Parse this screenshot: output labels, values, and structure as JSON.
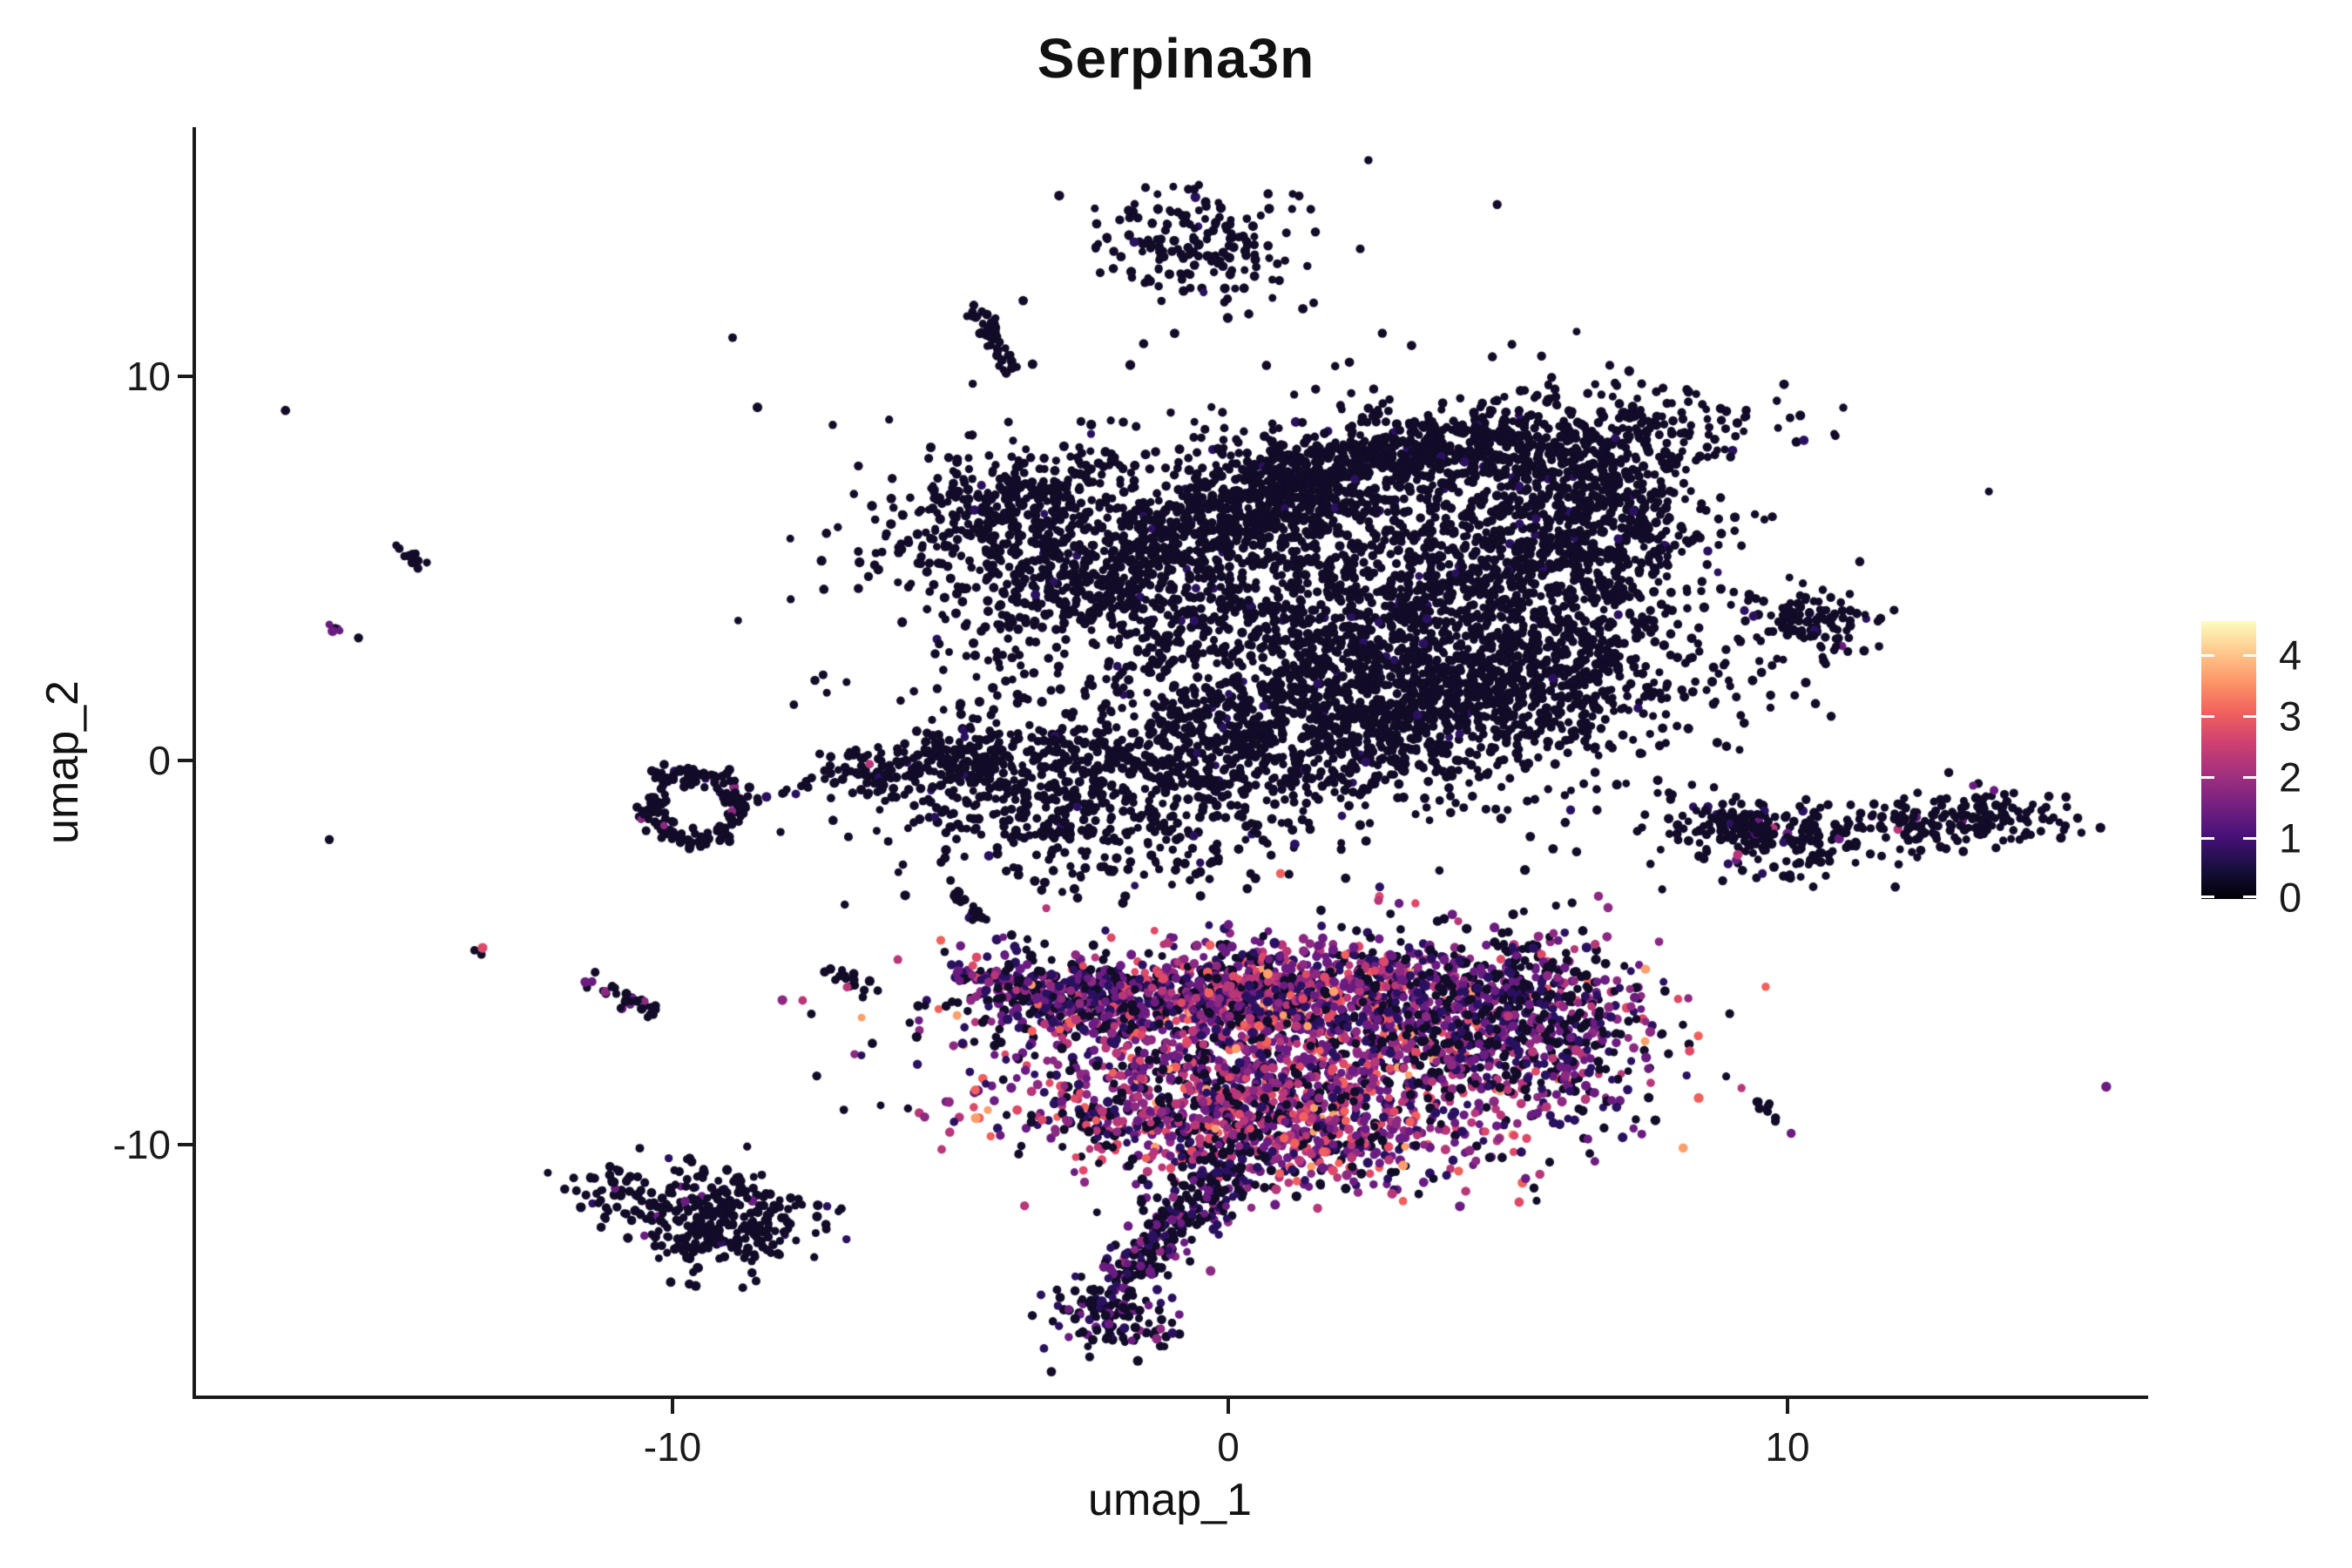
{
  "title": "Serpina3n",
  "axes": {
    "x": {
      "label": "umap_1",
      "range": [
        -18.6,
        16.5
      ],
      "ticks": [
        {
          "value": -10,
          "label": "-10"
        },
        {
          "value": 0,
          "label": "0"
        },
        {
          "value": 10,
          "label": "10"
        }
      ]
    },
    "y": {
      "label": "umap_2",
      "range": [
        -16.5,
        16.4
      ],
      "ticks": [
        {
          "value": 10,
          "label": "10"
        },
        {
          "value": 0,
          "label": "0"
        },
        {
          "value": -10,
          "label": "-10"
        }
      ]
    }
  },
  "colorbar": {
    "max_value": 4.55,
    "min_value": 0,
    "gradient": [
      "#000004",
      "#180f3e",
      "#451077",
      "#721f81",
      "#9f2f7f",
      "#cd4071",
      "#f1605d",
      "#fd9567",
      "#fec98d",
      "#fcfdbf"
    ],
    "ticks": [
      {
        "value": 4,
        "label": "4"
      },
      {
        "value": 3,
        "label": "3"
      },
      {
        "value": 2,
        "label": "2"
      },
      {
        "value": 1,
        "label": "1"
      },
      {
        "value": 0,
        "label": "0"
      }
    ]
  },
  "palette": {
    "black": "#120c28",
    "darkpurple": "#2a1160",
    "purple": "#6a1c81",
    "violet": "#8c2981",
    "magenta": "#b73779",
    "pink": "#de4968",
    "salmon": "#f1605d",
    "orange": "#fc9f6b"
  },
  "chart_data": {
    "type": "scatter",
    "title": "Serpina3n",
    "xlabel": "umap_1",
    "ylabel": "umap_2",
    "xlim": [
      -18.6,
      16.5
    ],
    "ylim": [
      -16.5,
      16.4
    ],
    "legend": "expression level 0 to 4+ on magma color scale, legend at right",
    "point_radius_px": 5,
    "mixes": {
      "BLACK": [
        [
          "black",
          0.975
        ],
        [
          "darkpurple",
          0.025
        ]
      ],
      "colorful": [
        [
          "black",
          0.25
        ],
        [
          "darkpurple",
          0.16
        ],
        [
          "purple",
          0.2
        ],
        [
          "violet",
          0.13
        ],
        [
          "magenta",
          0.13
        ],
        [
          "pink",
          0.07
        ],
        [
          "salmon",
          0.04
        ],
        [
          "orange",
          0.02
        ]
      ],
      "warm": [
        [
          "black",
          0.18
        ],
        [
          "darkpurple",
          0.13
        ],
        [
          "purple",
          0.19
        ],
        [
          "violet",
          0.14
        ],
        [
          "magenta",
          0.18
        ],
        [
          "pink",
          0.11
        ],
        [
          "salmon",
          0.05
        ],
        [
          "orange",
          0.02
        ]
      ],
      "pbm": [
        [
          "black",
          0.44
        ],
        [
          "darkpurple",
          0.22
        ],
        [
          "purple",
          0.19
        ],
        [
          "violet",
          0.09
        ],
        [
          "magenta",
          0.05
        ],
        [
          "pink",
          0.01
        ]
      ],
      "tailmix": [
        [
          "black",
          0.56
        ],
        [
          "darkpurple",
          0.2
        ],
        [
          "purple",
          0.16
        ],
        [
          "violet",
          0.06
        ],
        [
          "magenta",
          0.02
        ]
      ]
    },
    "clusters": [
      {
        "name": "main-band-right",
        "shape": "blob",
        "cx": 4.5,
        "cy": 8.1,
        "sx": 2.6,
        "sy": 0.55,
        "angle": 8,
        "n": 700,
        "mix": "BLACK"
      },
      {
        "name": "main-band-mid",
        "shape": "blob",
        "cx": 0.8,
        "cy": 6.9,
        "sx": 1.6,
        "sy": 0.55,
        "angle": 30,
        "n": 450,
        "mix": "BLACK"
      },
      {
        "name": "main-left-blob",
        "shape": "blob",
        "cx": -2.3,
        "cy": 5.2,
        "sx": 1.9,
        "sy": 1.4,
        "angle": -10,
        "n": 900,
        "mix": "BLACK"
      },
      {
        "name": "main-left-tail-up",
        "shape": "blob",
        "cx": -4.0,
        "cy": 6.7,
        "sx": 1.0,
        "sy": 0.45,
        "angle": 35,
        "n": 150,
        "mix": "BLACK"
      },
      {
        "name": "main-right-fill",
        "shape": "blob",
        "cx": 3.7,
        "cy": 4.0,
        "sx": 2.4,
        "sy": 2.5,
        "angle": 0,
        "n": 1300,
        "mix": "BLACK"
      },
      {
        "name": "main-right-low",
        "shape": "blob",
        "cx": 4.3,
        "cy": 1.8,
        "sx": 2.2,
        "sy": 1.0,
        "angle": 8,
        "n": 700,
        "mix": "BLACK"
      },
      {
        "name": "main-right-dense",
        "shape": "blob",
        "cx": 5.6,
        "cy": 5.4,
        "sx": 1.2,
        "sy": 1.2,
        "angle": 0,
        "n": 420,
        "mix": "BLACK"
      },
      {
        "name": "main-right-tip",
        "shape": "blob",
        "cx": 6.9,
        "cy": 6.7,
        "sx": 0.75,
        "sy": 0.95,
        "angle": 0,
        "n": 200,
        "mix": "BLACK"
      },
      {
        "name": "main-mid-fill",
        "shape": "blob",
        "cx": 0.9,
        "cy": 3.5,
        "sx": 1.9,
        "sy": 1.6,
        "angle": 0,
        "n": 360,
        "mix": "BLACK"
      },
      {
        "name": "main-low-band",
        "shape": "blob",
        "cx": 1.0,
        "cy": 0.5,
        "sx": 2.2,
        "sy": 0.9,
        "angle": 8,
        "n": 550,
        "mix": "BLACK"
      },
      {
        "name": "main-lowleft-blob",
        "shape": "blob",
        "cx": -2.9,
        "cy": -0.9,
        "sx": 1.9,
        "sy": 1.2,
        "angle": -15,
        "n": 650,
        "mix": "BLACK"
      },
      {
        "name": "main-left-arm",
        "shape": "blob",
        "cx": -5.5,
        "cy": -0.1,
        "sx": 0.9,
        "sy": 0.3,
        "angle": 12,
        "n": 120,
        "mix": "BLACK"
      },
      {
        "name": "main-halo",
        "shape": "blob",
        "cx": 1.0,
        "cy": 4.5,
        "sx": 5.5,
        "sy": 5.0,
        "angle": 0,
        "n": 90,
        "mix": "BLACK"
      },
      {
        "name": "top-island",
        "shape": "blob",
        "cx": -0.55,
        "cy": 13.4,
        "sx": 0.95,
        "sy": 0.8,
        "angle": 0,
        "n": 170,
        "mix": "BLACK"
      },
      {
        "name": "top-streak",
        "shape": "streak",
        "x1": -4.55,
        "y1": 11.8,
        "x2": -3.85,
        "y2": 10.1,
        "w": 0.12,
        "n": 40,
        "mix": "BLACK"
      },
      {
        "name": "far-left-streak",
        "shape": "streak",
        "x1": -14.95,
        "y1": 5.6,
        "x2": -14.5,
        "y2": 5.1,
        "w": 0.07,
        "n": 13,
        "mix": "BLACK"
      },
      {
        "name": "far-left-purple-dot",
        "shape": "blob",
        "cx": -16.05,
        "cy": 3.35,
        "sx": 0.16,
        "sy": 0.16,
        "angle": 0,
        "n": 7,
        "mix": [
          [
            "black",
            0.5
          ],
          [
            "purple",
            0.3
          ],
          [
            "darkpurple",
            0.2
          ]
        ]
      },
      {
        "name": "hook-cluster",
        "shape": "ring",
        "cx": -9.6,
        "cy": -1.2,
        "rx": 0.85,
        "ry": 1.0,
        "n": 170,
        "mix": [
          [
            "black",
            0.94
          ],
          [
            "darkpurple",
            0.04
          ],
          [
            "violet",
            0.02
          ]
        ]
      },
      {
        "name": "hook-chain",
        "shape": "streak",
        "x1": -8.6,
        "y1": -1.15,
        "x2": -6.3,
        "y2": 0.05,
        "w": 0.1,
        "n": 24,
        "mix": [
          [
            "black",
            0.92
          ],
          [
            "darkpurple",
            0.05
          ],
          [
            "magenta",
            0.03
          ]
        ]
      },
      {
        "name": "pink-pair",
        "shape": "blob",
        "cx": -13.45,
        "cy": -4.95,
        "sx": 0.1,
        "sy": 0.1,
        "angle": 0,
        "n": 3,
        "mix": [
          [
            "black",
            0.55
          ],
          [
            "pink",
            0.45
          ]
        ]
      },
      {
        "name": "purple-streak",
        "shape": "streak",
        "x1": -11.45,
        "y1": -5.75,
        "x2": -10.2,
        "y2": -6.6,
        "w": 0.11,
        "n": 30,
        "mix": [
          [
            "black",
            0.8
          ],
          [
            "purple",
            0.13
          ],
          [
            "violet",
            0.07
          ]
        ]
      },
      {
        "name": "small-streak",
        "shape": "streak",
        "x1": -7.1,
        "y1": -5.4,
        "x2": -6.3,
        "y2": -6.1,
        "w": 0.1,
        "n": 16,
        "mix": "BLACK"
      },
      {
        "name": "diag-streak",
        "shape": "streak",
        "x1": -5.05,
        "y1": -3.3,
        "x2": -4.3,
        "y2": -4.3,
        "w": 0.08,
        "n": 20,
        "mix": [
          [
            "black",
            0.93
          ],
          [
            "darkpurple",
            0.07
          ]
        ]
      },
      {
        "name": "pos-left-wedge",
        "shape": "blob",
        "cx": -2.9,
        "cy": -6.1,
        "sx": 0.95,
        "sy": 0.55,
        "angle": -15,
        "n": 260,
        "mix": "pbm"
      },
      {
        "name": "pos-left-tip",
        "shape": "blob",
        "cx": -4.1,
        "cy": -5.7,
        "sx": 0.45,
        "sy": 0.22,
        "angle": -10,
        "n": 40,
        "mix": "pbm"
      },
      {
        "name": "pos-upper-band",
        "shape": "blob",
        "cx": 0.7,
        "cy": -6.0,
        "sx": 2.4,
        "sy": 0.6,
        "angle": 3,
        "n": 900,
        "mix": "colorful"
      },
      {
        "name": "pos-main-body",
        "shape": "blob",
        "cx": 1.5,
        "cy": -7.7,
        "sx": 2.8,
        "sy": 1.3,
        "angle": 0,
        "n": 1500,
        "mix": "colorful"
      },
      {
        "name": "pos-right-lobe",
        "shape": "blob",
        "cx": 5.1,
        "cy": -6.7,
        "sx": 1.3,
        "sy": 1.1,
        "angle": -20,
        "n": 550,
        "mix": "pbm"
      },
      {
        "name": "pos-bottom-band",
        "shape": "blob",
        "cx": 0.4,
        "cy": -9.5,
        "sx": 2.1,
        "sy": 0.75,
        "angle": -8,
        "n": 650,
        "mix": "warm"
      },
      {
        "name": "pos-tail",
        "shape": "streak",
        "x1": 0.2,
        "y1": -10.2,
        "x2": -1.9,
        "y2": -13.6,
        "w": 0.33,
        "n": 300,
        "mix": "tailmix"
      },
      {
        "name": "pos-tail-tip",
        "shape": "blob",
        "cx": -2.1,
        "cy": -14.4,
        "sx": 0.55,
        "sy": 0.5,
        "angle": -30,
        "n": 120,
        "mix": [
          [
            "black",
            0.66
          ],
          [
            "darkpurple",
            0.2
          ],
          [
            "purple",
            0.12
          ],
          [
            "violet",
            0.02
          ]
        ]
      },
      {
        "name": "pos-strays",
        "shape": "blob",
        "cx": 1.2,
        "cy": -9.0,
        "sx": 3.2,
        "sy": 1.7,
        "angle": 0,
        "n": 50,
        "mix": "pbm"
      },
      {
        "name": "right-top-blob",
        "shape": "blob",
        "cx": 10.55,
        "cy": 3.6,
        "sx": 0.62,
        "sy": 0.45,
        "angle": -15,
        "n": 110,
        "mix": [
          [
            "black",
            0.95
          ],
          [
            "darkpurple",
            0.03
          ],
          [
            "purple",
            0.02
          ]
        ]
      },
      {
        "name": "right-mid-long",
        "shape": "blob",
        "cx": 9.9,
        "cy": -1.95,
        "sx": 1.05,
        "sy": 0.55,
        "angle": -10,
        "n": 200,
        "mix": [
          [
            "black",
            0.9
          ],
          [
            "darkpurple",
            0.05
          ],
          [
            "purple",
            0.04
          ],
          [
            "magenta",
            0.01
          ]
        ]
      },
      {
        "name": "right-mid-tail",
        "shape": "streak",
        "x1": 8.75,
        "y1": -1.5,
        "x2": 9.6,
        "y2": -1.85,
        "w": 0.14,
        "n": 40,
        "mix": "BLACK"
      },
      {
        "name": "right-dot-chain",
        "shape": "streak",
        "x1": 10.95,
        "y1": -1.75,
        "x2": 11.95,
        "y2": -1.75,
        "w": 0.04,
        "n": 7,
        "mix": "BLACK"
      },
      {
        "name": "right-far-long",
        "shape": "blob",
        "cx": 13.2,
        "cy": -1.55,
        "sx": 1.0,
        "sy": 0.33,
        "angle": 5,
        "n": 160,
        "mix": [
          [
            "black",
            0.97
          ],
          [
            "purple",
            0.03
          ]
        ]
      },
      {
        "name": "right-small-streak",
        "shape": "streak",
        "x1": 9.55,
        "y1": -8.8,
        "x2": 9.95,
        "y2": -9.35,
        "w": 0.07,
        "n": 10,
        "mix": "BLACK"
      },
      {
        "name": "bottomleft-main",
        "shape": "blob",
        "cx": -9.7,
        "cy": -11.6,
        "sx": 1.15,
        "sy": 0.55,
        "angle": -8,
        "n": 190,
        "mix": [
          [
            "black",
            0.93
          ],
          [
            "darkpurple",
            0.04
          ],
          [
            "purple",
            0.03
          ]
        ]
      },
      {
        "name": "bottomleft-lower",
        "shape": "blob",
        "cx": -9.0,
        "cy": -12.4,
        "sx": 0.8,
        "sy": 0.5,
        "angle": 25,
        "n": 120,
        "mix": "BLACK"
      },
      {
        "name": "bottomleft-arc",
        "shape": "streak",
        "x1": -9.5,
        "y1": -10.7,
        "x2": -8.6,
        "y2": -11.05,
        "w": 0.1,
        "n": 12,
        "mix": "BLACK"
      },
      {
        "name": "bottomleft-purple",
        "shape": "blob",
        "cx": -9.9,
        "cy": -10.6,
        "sx": 0.07,
        "sy": 0.07,
        "angle": 0,
        "n": 2,
        "mix": [
          [
            "purple",
            0.6
          ],
          [
            "black",
            0.4
          ]
        ]
      },
      {
        "name": "lone-dot",
        "shape": "blob",
        "cx": 2.85,
        "cy": -3.9,
        "sx": 0.04,
        "sy": 0.04,
        "angle": 0,
        "n": 1,
        "mix": "BLACK"
      }
    ]
  }
}
